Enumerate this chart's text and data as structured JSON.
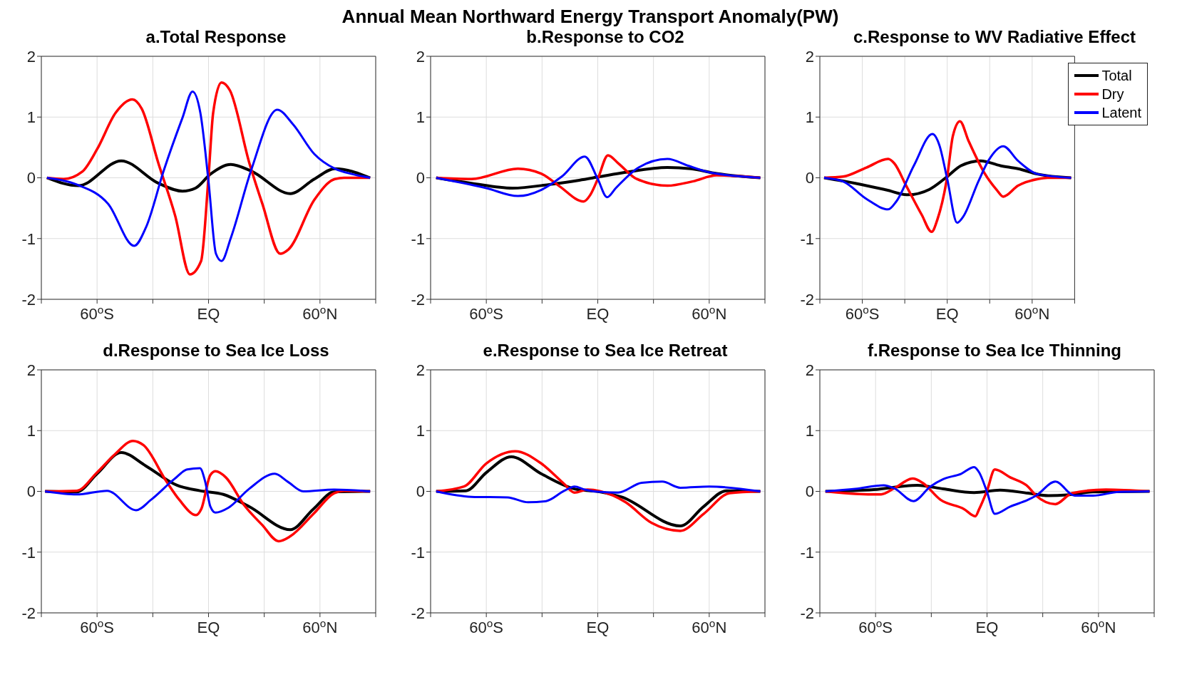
{
  "chart_data": [
    {
      "type": "line",
      "title": "a.Total Response",
      "annotations": [
        "Annual Mean Northward Energy Transport Anomaly(PW)"
      ],
      "xlim": [
        -90,
        90
      ],
      "xticks": [
        {
          "value": -90,
          "label": null
        },
        {
          "value": -60,
          "label": "60$^{o}$S"
        },
        {
          "value": -30,
          "label": null
        },
        {
          "value": 0,
          "label": "EQ"
        },
        {
          "value": 30,
          "label": null
        },
        {
          "value": 60,
          "label": "60$^{o}$N"
        },
        {
          "value": 90,
          "label": null
        }
      ],
      "ylim": [
        -2,
        2
      ],
      "yticks": [
        -2,
        -1,
        0,
        1,
        2
      ],
      "grid": true,
      "line_style": "solid",
      "series": [
        {
          "color": "#000000",
          "x": [
            -87,
            -70,
            -47,
            -27,
            -14,
            -7,
            1,
            12,
            23,
            44,
            57,
            68,
            87
          ],
          "values": [
            0,
            -0.13,
            0.28,
            -0.09,
            -0.22,
            -0.17,
            0.06,
            0.22,
            0.11,
            -0.26,
            -0.02,
            0.15,
            0
          ]
        },
        {
          "color": "#ff0000",
          "x": [
            -87,
            -78,
            -68,
            -60,
            -50,
            -41,
            -36,
            -27,
            -18,
            -10,
            -4,
            0,
            2.5,
            7,
            11.5,
            22,
            29,
            38.6,
            43,
            57,
            68,
            73,
            87
          ],
          "values": [
            0,
            -0.02,
            0.1,
            0.47,
            1.07,
            1.29,
            1.14,
            0.24,
            -0.62,
            -1.59,
            -1.37,
            0.02,
            1.07,
            1.57,
            1.44,
            0.24,
            -0.43,
            -1.25,
            -1.18,
            -0.36,
            -0.02,
            0,
            0
          ]
        },
        {
          "color": "#0000ff",
          "x": [
            -87,
            -71,
            -54,
            -40,
            -33.6,
            -24,
            -14,
            -8.6,
            -4.4,
            0,
            4,
            7,
            12,
            23,
            37,
            45.5,
            57,
            68,
            77.5,
            87
          ],
          "values": [
            0,
            -0.11,
            -0.43,
            -1.12,
            -0.81,
            0.13,
            0.99,
            1.42,
            1.07,
            -0.06,
            -1.25,
            -1.37,
            -0.99,
            0.13,
            1.12,
            0.88,
            0.39,
            0.15,
            0.06,
            0
          ]
        }
      ]
    },
    {
      "type": "line",
      "title": "b.Response to CO2",
      "xlim": [
        -90,
        90
      ],
      "xticks": [
        {
          "value": -90,
          "label": null
        },
        {
          "value": -60,
          "label": "60$^{o}$S"
        },
        {
          "value": -30,
          "label": null
        },
        {
          "value": 0,
          "label": "EQ"
        },
        {
          "value": 30,
          "label": null
        },
        {
          "value": 60,
          "label": "60$^{o}$N"
        },
        {
          "value": 90,
          "label": null
        }
      ],
      "ylim": [
        -2,
        2
      ],
      "yticks": [
        -2,
        -1,
        0,
        1,
        2
      ],
      "grid": true,
      "line_style": "solid",
      "series": [
        {
          "color": "#000000",
          "x": [
            -87,
            -68,
            -46,
            -26,
            -10,
            1.4,
            15,
            37.5,
            50,
            64,
            87.5
          ],
          "values": [
            0,
            -0.09,
            -0.17,
            -0.11,
            -0.04,
            0.02,
            0.09,
            0.17,
            0.15,
            0.07,
            0
          ]
        },
        {
          "color": "#ff0000",
          "x": [
            -87,
            -68,
            -43,
            -30.5,
            -21,
            -7.6,
            -4,
            0,
            5.5,
            11,
            21,
            37.5,
            51,
            64,
            87.5
          ],
          "values": [
            0,
            -0.02,
            0.15,
            0.07,
            -0.13,
            -0.39,
            -0.28,
            -0.02,
            0.37,
            0.24,
            -0.02,
            -0.13,
            -0.06,
            0.04,
            0
          ]
        },
        {
          "color": "#0000ff",
          "x": [
            -87,
            -60,
            -43,
            -30.5,
            -19.4,
            -7,
            0,
            5,
            9.7,
            22,
            37.5,
            48.6,
            60,
            87.5
          ],
          "values": [
            0,
            -0.17,
            -0.3,
            -0.2,
            0.02,
            0.35,
            -0.02,
            -0.32,
            -0.17,
            0.17,
            0.31,
            0.2,
            0.09,
            0
          ]
        }
      ]
    },
    {
      "type": "line",
      "title": "c.Response to WV Radiative Effect",
      "legend": "top right",
      "xlim": [
        -90,
        90
      ],
      "xticks": [
        {
          "value": -90,
          "label": null
        },
        {
          "value": -60,
          "label": "60$^{o}$S"
        },
        {
          "value": -30,
          "label": null
        },
        {
          "value": 0,
          "label": "EQ"
        },
        {
          "value": 30,
          "label": null
        },
        {
          "value": 60,
          "label": "60$^{o}$N"
        },
        {
          "value": 90,
          "label": null
        }
      ],
      "ylim": [
        -2,
        2
      ],
      "yticks": [
        -2,
        -1,
        0,
        1,
        2
      ],
      "grid": true,
      "line_style": "solid",
      "series": [
        {
          "name": "Total",
          "color": "#000000",
          "x": [
            -87,
            -65,
            -43,
            -28,
            -12.5,
            0,
            9.7,
            23.6,
            37.5,
            50,
            64,
            87.5
          ],
          "values": [
            0,
            -0.09,
            -0.2,
            -0.28,
            -0.19,
            0.02,
            0.2,
            0.28,
            0.2,
            0.15,
            0.06,
            0
          ]
        },
        {
          "name": "Dry",
          "color": "#ff0000",
          "x": [
            -87,
            -73.6,
            -57,
            -41.7,
            -37.5,
            -29,
            -18,
            -11,
            -7,
            0,
            4,
            9,
            15,
            26,
            35,
            39.6,
            50,
            64,
            71,
            87.5
          ],
          "values": [
            0,
            0.02,
            0.17,
            0.31,
            0.24,
            -0.13,
            -0.61,
            -0.89,
            -0.69,
            0.02,
            0.69,
            0.93,
            0.61,
            0.09,
            -0.2,
            -0.31,
            -0.13,
            -0.02,
            0,
            0
          ]
        },
        {
          "name": "Latent",
          "color": "#0000ff",
          "x": [
            -87,
            -73.6,
            -57,
            -41.7,
            -36,
            -23.6,
            -10.4,
            -5.6,
            0,
            7,
            11,
            22,
            29,
            39.6,
            50,
            64,
            87.5
          ],
          "values": [
            0,
            -0.06,
            -0.35,
            -0.52,
            -0.39,
            0.2,
            0.72,
            0.54,
            -0.02,
            -0.74,
            -0.65,
            -0.06,
            0.28,
            0.52,
            0.28,
            0.06,
            0
          ]
        }
      ]
    },
    {
      "type": "line",
      "title": "d.Response to Sea Ice Loss",
      "xlim": [
        -90,
        90
      ],
      "xticks": [
        {
          "value": -90,
          "label": null
        },
        {
          "value": -60,
          "label": "60$^{o}$S"
        },
        {
          "value": -30,
          "label": null
        },
        {
          "value": 0,
          "label": "EQ"
        },
        {
          "value": 30,
          "label": null
        },
        {
          "value": 60,
          "label": "60$^{o}$N"
        },
        {
          "value": 90,
          "label": null
        }
      ],
      "ylim": [
        -2,
        2
      ],
      "yticks": [
        -2,
        -1,
        0,
        1,
        2
      ],
      "grid": true,
      "line_style": "solid",
      "series": [
        {
          "color": "#000000",
          "x": [
            -88,
            -71,
            -60,
            -47,
            -33.8,
            -17,
            -4.6,
            8,
            21.8,
            44,
            56.5,
            67.6,
            87
          ],
          "values": [
            0,
            -0.01,
            0.29,
            0.64,
            0.42,
            0.1,
            0.01,
            -0.05,
            -0.25,
            -0.63,
            -0.29,
            -0.01,
            0
          ]
        },
        {
          "color": "#ff0000",
          "x": [
            -88,
            -71,
            -60,
            -50.4,
            -40.7,
            -35,
            -22.6,
            -15.7,
            -6.7,
            -3.9,
            1,
            3.8,
            9.3,
            19,
            28.8,
            37.8,
            44,
            56.5,
            67.6,
            73,
            87
          ],
          "values": [
            0,
            0.01,
            0.31,
            0.61,
            0.83,
            0.76,
            0.16,
            -0.14,
            -0.39,
            -0.29,
            0.27,
            0.33,
            0.23,
            -0.22,
            -0.55,
            -0.82,
            -0.74,
            -0.37,
            -0.03,
            0.01,
            0
          ]
        },
        {
          "color": "#0000ff",
          "x": [
            -88,
            -71,
            -54.6,
            -39,
            -31,
            -18.5,
            -11.5,
            -4.6,
            -1.8,
            1,
            3.8,
            10.7,
            21.8,
            35.7,
            42.6,
            51,
            67.6,
            87
          ],
          "values": [
            0,
            -0.05,
            0.01,
            -0.31,
            -0.14,
            0.2,
            0.36,
            0.38,
            0.16,
            -0.25,
            -0.35,
            -0.27,
            0.04,
            0.29,
            0.16,
            0,
            0.03,
            0
          ]
        }
      ]
    },
    {
      "type": "line",
      "title": "e.Response to Sea Ice Retreat",
      "xlim": [
        -90,
        90
      ],
      "xticks": [
        {
          "value": -90,
          "label": null
        },
        {
          "value": -60,
          "label": "60$^{o}$S"
        },
        {
          "value": -30,
          "label": null
        },
        {
          "value": 0,
          "label": "EQ"
        },
        {
          "value": 30,
          "label": null
        },
        {
          "value": 60,
          "label": "60$^{o}$N"
        },
        {
          "value": 90,
          "label": null
        }
      ],
      "ylim": [
        -2,
        2
      ],
      "yticks": [
        -2,
        -1,
        0,
        1,
        2
      ],
      "grid": true,
      "line_style": "solid",
      "series": [
        {
          "color": "#000000",
          "x": [
            -87,
            -71,
            -60,
            -46.5,
            -30.5,
            -12.5,
            1.4,
            12.5,
            44.4,
            57,
            69.4,
            87.5
          ],
          "values": [
            0,
            0.01,
            0.31,
            0.57,
            0.29,
            0.04,
            -0.01,
            -0.09,
            -0.57,
            -0.25,
            0.01,
            0
          ]
        },
        {
          "color": "#ff0000",
          "x": [
            -87,
            -72,
            -60,
            -44.4,
            -30.5,
            -18,
            -12.5,
            -5.6,
            8.3,
            15,
            29,
            44.4,
            57,
            71,
            87.5
          ],
          "values": [
            0,
            0.08,
            0.46,
            0.66,
            0.46,
            0.12,
            -0.02,
            0.03,
            -0.07,
            -0.18,
            -0.52,
            -0.65,
            -0.37,
            -0.03,
            0
          ]
        },
        {
          "color": "#0000ff",
          "x": [
            -87,
            -68,
            -48.6,
            -37.5,
            -27.8,
            -18,
            -12.5,
            -7,
            1.4,
            11,
            23.6,
            34.7,
            44.4,
            60,
            87.5
          ],
          "values": [
            0,
            -0.09,
            -0.1,
            -0.18,
            -0.16,
            0.01,
            0.08,
            0.03,
            -0.01,
            -0.02,
            0.14,
            0.16,
            0.06,
            0.08,
            0
          ]
        }
      ]
    },
    {
      "type": "line",
      "title": "f.Response to Sea Ice Thinning",
      "xlim": [
        -90,
        90
      ],
      "xticks": [
        {
          "value": -90,
          "label": null
        },
        {
          "value": -60,
          "label": "60$^{o}$S"
        },
        {
          "value": -30,
          "label": null
        },
        {
          "value": 0,
          "label": "EQ"
        },
        {
          "value": 30,
          "label": null
        },
        {
          "value": 60,
          "label": "60$^{o}$N"
        },
        {
          "value": 90,
          "label": null
        }
      ],
      "ylim": [
        -2,
        2
      ],
      "yticks": [
        -2,
        -1,
        0,
        1,
        2
      ],
      "grid": true,
      "line_style": "solid",
      "series": [
        {
          "color": "#000000",
          "x": [
            -87,
            -61,
            -37.5,
            -23.6,
            -6.9,
            7,
            22,
            33,
            43,
            57,
            87.5
          ],
          "values": [
            0,
            0.03,
            0.1,
            0.04,
            -0.02,
            0.02,
            -0.03,
            -0.07,
            -0.06,
            -0.01,
            0
          ]
        },
        {
          "color": "#ff0000",
          "x": [
            -87,
            -71,
            -57,
            -50,
            -40,
            -34.7,
            -25,
            -12.5,
            -6.3,
            -4.2,
            0,
            4.2,
            12.5,
            22,
            26.4,
            36.8,
            45.8,
            64,
            87.5
          ],
          "values": [
            0,
            -0.04,
            -0.05,
            0.05,
            0.21,
            0.14,
            -0.14,
            -0.29,
            -0.41,
            -0.29,
            0.01,
            0.36,
            0.23,
            0.08,
            -0.07,
            -0.21,
            -0.03,
            0.03,
            0
          ]
        },
        {
          "color": "#0000ff",
          "x": [
            -87,
            -71,
            -55.6,
            -50,
            -39.6,
            -30.5,
            -23.6,
            -13.9,
            -6.9,
            -4.2,
            0,
            4.2,
            12.5,
            22,
            26.4,
            36.8,
            47.2,
            57,
            71,
            87.5
          ],
          "values": [
            0,
            0.04,
            0.1,
            0.05,
            -0.16,
            0.08,
            0.2,
            0.29,
            0.4,
            0.31,
            -0.01,
            -0.37,
            -0.25,
            -0.14,
            -0.07,
            0.16,
            -0.07,
            -0.07,
            -0.01,
            0
          ]
        }
      ]
    }
  ]
}
